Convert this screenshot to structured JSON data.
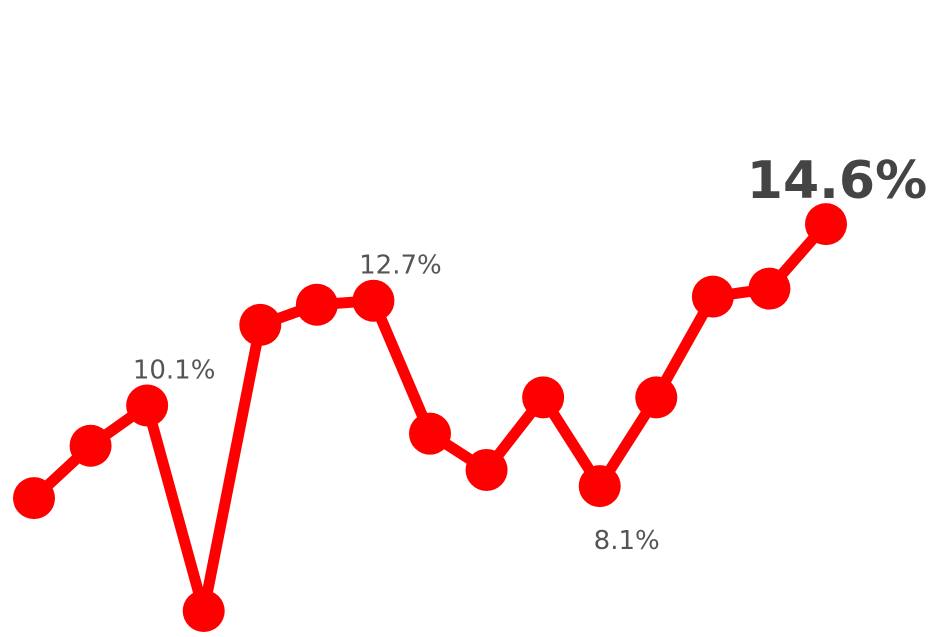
{
  "chart_data": {
    "type": "line",
    "title": "",
    "xlabel": "",
    "ylabel": "",
    "ylim": [
      4,
      15
    ],
    "grid": false,
    "legend": "none",
    "line_color": "#ff0000",
    "label_color": "#555555",
    "last_label_color": "#444444",
    "series": [
      {
        "values": [
          7.8,
          9.1,
          10.1,
          5.0,
          12.1,
          12.6,
          12.7,
          9.4,
          8.5,
          10.3,
          8.1,
          10.3,
          12.8,
          13.0,
          14.6
        ],
        "labels": [
          {
            "index": 2,
            "text": "10.1%"
          },
          {
            "index": 6,
            "text": "12.7%"
          },
          {
            "index": 10,
            "text": "8.1%"
          },
          {
            "index": 14,
            "text": "14.6%"
          }
        ]
      }
    ]
  }
}
